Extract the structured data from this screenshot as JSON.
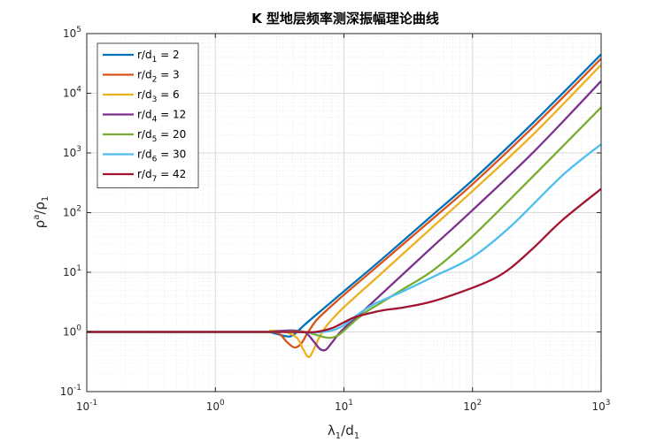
{
  "chart_data": {
    "type": "line",
    "title": "K 型地层频率测深振幅理论曲线",
    "xlabel": {
      "base": "λ",
      "sub": "1",
      "sep": "/d",
      "sub2": "1"
    },
    "ylabel": {
      "base": "ρ",
      "sup": "a",
      "sep": "/ρ",
      "sub": "1"
    },
    "xscale": "log",
    "yscale": "log",
    "xlim": [
      0.1,
      1000
    ],
    "ylim": [
      0.1,
      100000
    ],
    "x_ticks": [
      {
        "base": "10",
        "exp": "-1",
        "value": 0.1
      },
      {
        "base": "10",
        "exp": "0",
        "value": 1
      },
      {
        "base": "10",
        "exp": "1",
        "value": 10
      },
      {
        "base": "10",
        "exp": "2",
        "value": 100
      },
      {
        "base": "10",
        "exp": "3",
        "value": 1000
      }
    ],
    "y_ticks": [
      {
        "base": "10",
        "exp": "-1",
        "value": 0.1
      },
      {
        "base": "10",
        "exp": "0",
        "value": 1
      },
      {
        "base": "10",
        "exp": "1",
        "value": 10
      },
      {
        "base": "10",
        "exp": "2",
        "value": 100
      },
      {
        "base": "10",
        "exp": "3",
        "value": 1000
      },
      {
        "base": "10",
        "exp": "4",
        "value": 10000
      },
      {
        "base": "10",
        "exp": "5",
        "value": 100000
      }
    ],
    "grid": true,
    "minor_grid": true,
    "legend_position": "top-left",
    "series": [
      {
        "name": "r/d1 = 2",
        "legend": {
          "pre": "r/d",
          "sub": "1",
          "post": " = 2"
        },
        "color": "#0072BD",
        "x": [
          0.1,
          2,
          2.6,
          3,
          3.5,
          4,
          5,
          7,
          10,
          20,
          50,
          100,
          300,
          1000
        ],
        "y": [
          1,
          1,
          0.99,
          0.93,
          0.85,
          0.88,
          1.35,
          2.5,
          4.8,
          17,
          95,
          350,
          3300,
          45000
        ]
      },
      {
        "name": "r/d2 = 3",
        "legend": {
          "pre": "r/d",
          "sub": "2",
          "post": " = 3"
        },
        "color": "#D95319",
        "x": [
          0.1,
          2,
          2.8,
          3.2,
          3.6,
          4.1,
          4.6,
          5.2,
          6,
          7,
          10,
          20,
          50,
          100,
          300,
          1000
        ],
        "y": [
          1,
          1,
          1.01,
          0.9,
          0.68,
          0.55,
          0.62,
          0.95,
          1.5,
          2.1,
          4.2,
          15,
          82,
          300,
          2800,
          38000
        ]
      },
      {
        "name": "r/d3 = 6",
        "legend": {
          "pre": "r/d",
          "sub": "3",
          "post": " = 6"
        },
        "color": "#EDB120",
        "x": [
          0.1,
          2,
          2.7,
          3.5,
          4.3,
          4.8,
          5.3,
          5.8,
          6.5,
          7.5,
          10,
          20,
          50,
          100,
          300,
          1000
        ],
        "y": [
          1,
          1,
          1.05,
          1.0,
          0.8,
          0.52,
          0.38,
          0.5,
          0.85,
          1.35,
          2.6,
          10,
          60,
          230,
          2100,
          30000
        ]
      },
      {
        "name": "r/d4 = 12",
        "legend": {
          "pre": "r/d",
          "sub": "4",
          "post": " = 12"
        },
        "color": "#7E2F8E",
        "x": [
          0.1,
          2,
          3,
          4,
          5,
          5.8,
          6.5,
          7.2,
          8,
          9,
          10,
          13,
          20,
          50,
          100,
          300,
          1000
        ],
        "y": [
          1,
          1,
          1.03,
          1.06,
          0.98,
          0.7,
          0.52,
          0.5,
          0.65,
          0.9,
          1.15,
          1.9,
          4.5,
          28,
          110,
          1050,
          16000
        ]
      },
      {
        "name": "r/d5 = 20",
        "legend": {
          "pre": "r/d",
          "sub": "5",
          "post": " = 20"
        },
        "color": "#77AC30",
        "x": [
          0.1,
          2,
          3,
          4,
          5,
          6,
          7,
          8,
          9,
          10,
          12,
          15,
          20,
          30,
          50,
          100,
          300,
          1000
        ],
        "y": [
          1,
          1,
          1.0,
          1.02,
          1.0,
          0.9,
          0.82,
          0.8,
          0.88,
          1.05,
          1.5,
          2.2,
          3.2,
          5.5,
          11,
          40,
          420,
          5800
        ]
      },
      {
        "name": "r/d6 = 30",
        "legend": {
          "pre": "r/d",
          "sub": "6",
          "post": " = 30"
        },
        "color": "#4DBEEE",
        "x": [
          0.1,
          2,
          4,
          6,
          8,
          10,
          13,
          17,
          20,
          30,
          50,
          100,
          200,
          500,
          1000
        ],
        "y": [
          1,
          1,
          1.0,
          0.98,
          1.05,
          1.3,
          2.0,
          2.9,
          3.4,
          5.0,
          8.5,
          18,
          60,
          420,
          1400
        ]
      },
      {
        "name": "r/d7 = 42",
        "legend": {
          "pre": "r/d",
          "sub": "7",
          "post": " = 42"
        },
        "color": "#A2142F",
        "x": [
          0.1,
          2,
          4,
          6,
          8,
          10,
          12,
          15,
          20,
          30,
          50,
          100,
          150,
          200,
          300,
          500,
          1000
        ],
        "y": [
          1,
          1,
          1.0,
          1.0,
          1.15,
          1.45,
          1.75,
          2.0,
          2.3,
          2.6,
          3.3,
          5.5,
          8,
          12,
          26,
          75,
          250
        ]
      }
    ]
  }
}
